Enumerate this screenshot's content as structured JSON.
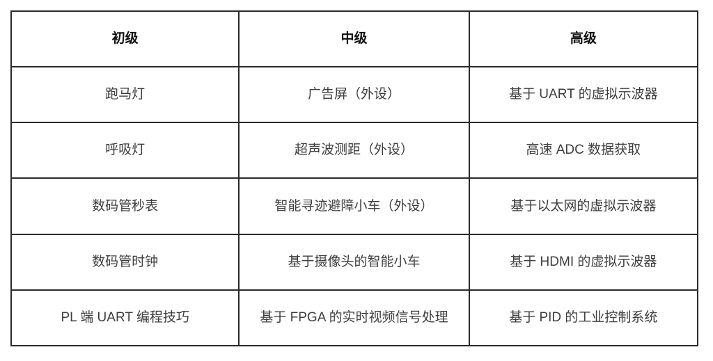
{
  "table": {
    "headers": [
      "初级",
      "中级",
      "高级"
    ],
    "rows": [
      [
        "跑马灯",
        "广告屏（外设）",
        "基于 UART 的虚拟示波器"
      ],
      [
        "呼吸灯",
        "超声波测距（外设）",
        "高速 ADC 数据获取"
      ],
      [
        "数码管秒表",
        "智能寻迹避障小车（外设）",
        "基于以太网的虚拟示波器"
      ],
      [
        "数码管时钟",
        "基于摄像头的智能小车",
        "基于 HDMI 的虚拟示波器"
      ],
      [
        "PL 端 UART 编程技巧",
        "基于 FPGA 的实时视频信号处理",
        "基于 PID 的工业控制系统"
      ]
    ]
  },
  "colors": {
    "border": "#2a2a2a",
    "header_text": "#111111",
    "body_text": "#3d3d3d",
    "background": "#ffffff"
  }
}
